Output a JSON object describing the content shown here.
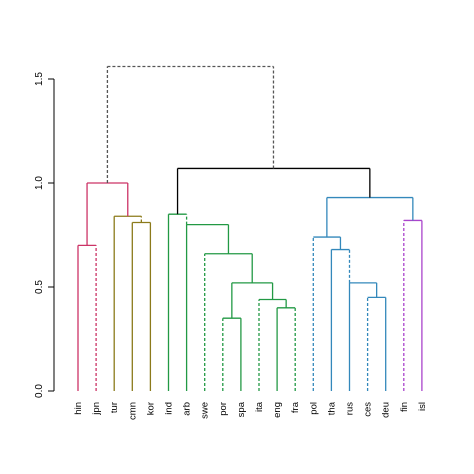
{
  "chart_data": {
    "type": "dendrogram",
    "title": "",
    "xlabel": "",
    "ylabel": "",
    "ylim": [
      0,
      1.6
    ],
    "y_ticks": [
      "0.0",
      "0.5",
      "1.0",
      "1.5"
    ],
    "y_tick_values": [
      0,
      0.5,
      1.0,
      1.5
    ],
    "leaves": [
      "hin",
      "jpn",
      "tur",
      "cmn",
      "kor",
      "ind",
      "arb",
      "swe",
      "por",
      "spa",
      "ita",
      "eng",
      "fra",
      "pol",
      "tha",
      "rus",
      "ces",
      "deu",
      "fin",
      "isl"
    ],
    "links": [
      {
        "a": 0,
        "b": 1,
        "h": 0.7,
        "color": "#cc3366",
        "ha": 0,
        "hb": 0,
        "dashA": false,
        "dashB": true
      },
      {
        "a": 3,
        "b": 4,
        "h": 0.81,
        "color": "#8b7a1a",
        "ha": 0,
        "hb": 0,
        "dashA": false,
        "dashB": false
      },
      {
        "a": 2,
        "b": 3.5,
        "h": 0.84,
        "color": "#8b7a1a",
        "ha": 0,
        "hb": 0.81,
        "dashA": false,
        "dashB": true
      },
      {
        "a": 0.5,
        "b": 2.75,
        "h": 1.0,
        "color": "#cc3366",
        "ha": 0.7,
        "hb": 0.84,
        "dashA": false,
        "dashB": false
      },
      {
        "a": 8,
        "b": 9,
        "h": 0.35,
        "color": "#229944",
        "ha": 0,
        "hb": 0,
        "dashA": true,
        "dashB": false
      },
      {
        "a": 11,
        "b": 12,
        "h": 0.4,
        "color": "#229944",
        "ha": 0,
        "hb": 0,
        "dashA": false,
        "dashB": true
      },
      {
        "a": 10,
        "b": 11.5,
        "h": 0.44,
        "color": "#229944",
        "ha": 0,
        "hb": 0.4,
        "dashA": true,
        "dashB": false
      },
      {
        "a": 8.5,
        "b": 10.75,
        "h": 0.52,
        "color": "#229944",
        "ha": 0.35,
        "hb": 0.44,
        "dashA": false,
        "dashB": false
      },
      {
        "a": 7,
        "b": 9.625,
        "h": 0.66,
        "color": "#229944",
        "ha": 0,
        "hb": 0.52,
        "dashA": true,
        "dashB": false
      },
      {
        "a": 6,
        "b": 8.3125,
        "h": 0.8,
        "color": "#229944",
        "ha": 0,
        "hb": 0.66,
        "dashA": false,
        "dashB": false
      },
      {
        "a": 5,
        "b": 6,
        "h": 0.85,
        "color": "#229944",
        "ha": 0,
        "hb": 0.8,
        "dashA": false,
        "dashB": true
      },
      {
        "a": 16,
        "b": 17,
        "h": 0.45,
        "color": "#3388bb",
        "ha": 0,
        "hb": 0,
        "dashA": true,
        "dashB": false
      },
      {
        "a": 15,
        "b": 16.5,
        "h": 0.52,
        "color": "#3388bb",
        "ha": 0,
        "hb": 0.45,
        "dashA": false,
        "dashB": false
      },
      {
        "a": 14,
        "b": 15,
        "h": 0.68,
        "color": "#3388bb",
        "ha": 0,
        "hb": 0.52,
        "dashA": false,
        "dashB": true
      },
      {
        "a": 13,
        "b": 14.5,
        "h": 0.74,
        "color": "#3388bb",
        "ha": 0,
        "hb": 0.68,
        "dashA": true,
        "dashB": false
      },
      {
        "a": 18,
        "b": 19,
        "h": 0.82,
        "color": "#aa44cc",
        "ha": 0,
        "hb": 0,
        "dashA": true,
        "dashB": false
      },
      {
        "a": 13.75,
        "b": 18.5,
        "h": 0.93,
        "color": "#3388bb",
        "ha": 0.74,
        "hb": 0.82,
        "dashA": false,
        "dashB": false
      },
      {
        "a": 5.5,
        "b": 16.125,
        "h": 1.07,
        "color": "#000000",
        "ha": 0.85,
        "hb": 0.93,
        "dashA": false,
        "dashB": false
      },
      {
        "a": 1.625,
        "b": 10.8,
        "h": 1.56,
        "color": "#555555",
        "ha": 1.0,
        "hb": 1.07,
        "dashA": true,
        "dashB": true
      }
    ]
  },
  "colors": {
    "hin": "#cc3366",
    "tur": "#8b7a1a",
    "green": "#229944",
    "blue": "#3388bb",
    "purple": "#aa44cc"
  }
}
